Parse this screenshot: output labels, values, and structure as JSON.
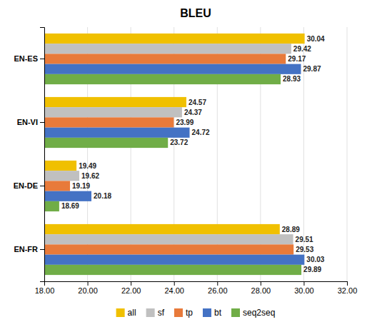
{
  "chart_data": {
    "type": "bar",
    "orientation": "horizontal",
    "title": "BLEU",
    "categories": [
      "EN-ES",
      "EN-VI",
      "EN-DE",
      "EN-FR"
    ],
    "series": [
      {
        "name": "all",
        "color": "#F0C000",
        "values": [
          30.04,
          24.57,
          19.49,
          28.89
        ]
      },
      {
        "name": "sf",
        "color": "#C0C0C0",
        "values": [
          29.42,
          24.37,
          19.62,
          29.51
        ]
      },
      {
        "name": "tp",
        "color": "#E87A3A",
        "values": [
          29.17,
          23.99,
          19.19,
          29.53
        ]
      },
      {
        "name": "bt",
        "color": "#4472C4",
        "values": [
          29.87,
          24.72,
          20.18,
          30.03
        ]
      },
      {
        "name": "seq2seq",
        "color": "#70AD47",
        "values": [
          28.93,
          23.72,
          18.69,
          29.89
        ]
      }
    ],
    "xlim": [
      18.0,
      32.0
    ],
    "xticks": [
      {
        "value": 18,
        "label": "18.00"
      },
      {
        "value": 20,
        "label": "20.00"
      },
      {
        "value": 22,
        "label": "22.00"
      },
      {
        "value": 24,
        "label": "24.00"
      },
      {
        "value": 26,
        "label": "26.00"
      },
      {
        "value": 28,
        "label": "28.00"
      },
      {
        "value": 30,
        "label": "30.00"
      },
      {
        "value": 32,
        "label": "32.00"
      }
    ],
    "grid": true,
    "legend": "bottom",
    "data_labels": true
  }
}
